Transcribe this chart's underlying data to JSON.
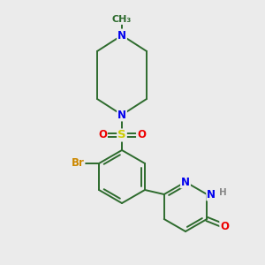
{
  "background_color": "#ebebeb",
  "bond_color": "#2d6b2d",
  "atom_colors": {
    "N": "#0000ee",
    "O": "#ee0000",
    "S": "#cccc00",
    "Br": "#cc8800",
    "H": "#888888",
    "C": "#2d6b2d"
  },
  "figsize": [
    3.0,
    3.0
  ],
  "dpi": 100,
  "lw": 1.4,
  "fs": 8.5,
  "scale": 1.0
}
